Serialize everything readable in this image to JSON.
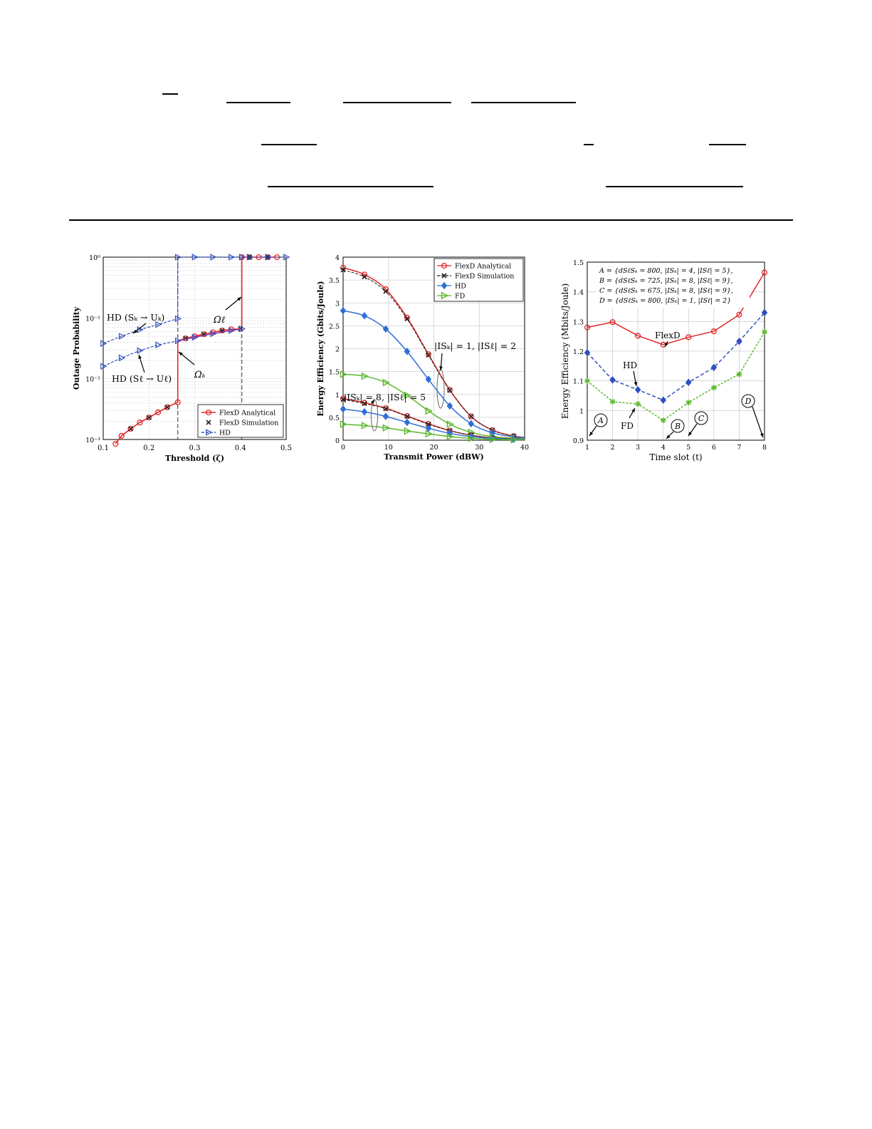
{
  "colors": {
    "flexd": "#e02626",
    "flexd_sim": "#222222",
    "hd": "#2f4fbf",
    "hd2": "#2f6fd6",
    "fd": "#5cb82c",
    "grid": "#cfcfcf",
    "purple": "#7a3fb0"
  },
  "chart_data": [
    {
      "type": "line",
      "xlabel": "Threshold (ζ)",
      "ylabel": "Outage Probability",
      "yscale": "log",
      "xlim": [
        0.1,
        0.5
      ],
      "ylim": [
        0.001,
        1
      ],
      "xticks": [
        "0.1",
        "0.2",
        "0.3",
        "0.4",
        "0.5"
      ],
      "yticks": [
        "10⁻³",
        "10⁻²",
        "10⁻¹",
        "10⁰"
      ],
      "legend": {
        "position": "bottom-right",
        "entries": [
          "FlexD Analytical",
          "FlexD Simulation",
          "HD"
        ]
      },
      "grid": true,
      "annotations": [
        "HD (Sₖ → Uₖ)",
        "HD (Sℓ → Uℓ)",
        "Ωℓ",
        "Ωₖ"
      ],
      "series": [
        {
          "name": "FlexD Analytical",
          "color": "#e02626",
          "marker": "circle",
          "x": [
            0.127,
            0.14,
            0.16,
            0.18,
            0.2,
            0.22,
            0.24,
            0.263,
            0.263,
            0.28,
            0.3,
            0.32,
            0.34,
            0.36,
            0.38,
            0.403,
            0.403,
            0.42,
            0.44,
            0.46,
            0.48
          ],
          "y": [
            0.00085,
            0.00115,
            0.0015,
            0.0019,
            0.0023,
            0.0028,
            0.0034,
            0.0041,
            0.042,
            0.046,
            0.05,
            0.054,
            0.058,
            0.062,
            0.065,
            0.066,
            1,
            1,
            1,
            1,
            1
          ]
        },
        {
          "name": "FlexD Simulation",
          "color": "#222222",
          "marker": "x",
          "x": [
            0.16,
            0.2,
            0.24,
            0.28,
            0.32,
            0.36,
            0.4,
            0.42,
            0.46
          ],
          "y": [
            0.0015,
            0.0023,
            0.0034,
            0.046,
            0.054,
            0.062,
            0.066,
            1,
            1
          ]
        },
        {
          "name": "HD",
          "color": "#2f4fbf",
          "marker": "triangle",
          "x": [
            0.1,
            0.14,
            0.18,
            0.22,
            0.263,
            0.263,
            0.3,
            0.34,
            0.38,
            0.403,
            0.42,
            0.46,
            0.5
          ],
          "y": [
            0.038,
            0.05,
            0.064,
            0.078,
            0.097,
            1,
            1,
            1,
            1,
            1,
            1,
            1,
            1
          ]
        },
        {
          "name": "",
          "color": "#2f4fbf",
          "marker": "triangle",
          "x": [
            0.1,
            0.14,
            0.18,
            0.22,
            0.263,
            0.3,
            0.34,
            0.38,
            0.403
          ],
          "y": [
            0.016,
            0.022,
            0.029,
            0.036,
            0.042,
            0.048,
            0.055,
            0.062,
            0.066
          ]
        }
      ]
    },
    {
      "type": "line",
      "xlabel": "Transmit Power (dBW)",
      "ylabel": "Energy Efficiency (Gbits/Joule)",
      "xlim": [
        0,
        40
      ],
      "ylim": [
        0,
        4
      ],
      "xticks": [
        "0",
        "10",
        "20",
        "30",
        "40"
      ],
      "yticks": [
        "0",
        "0.5",
        "1",
        "1.5",
        "2",
        "2.5",
        "3",
        "3.5",
        "4"
      ],
      "legend": {
        "position": "top-right",
        "entries": [
          "FlexD Analytical",
          "FlexD Simulation",
          "HD",
          "FD"
        ]
      },
      "grid": true,
      "annotations": [
        "|ISₖ| = 1, |ISℓ| = 2",
        "|ISₖ| = 8, |ISℓ| = 5"
      ],
      "x": [
        0,
        4.7,
        9.4,
        14.1,
        18.8,
        23.5,
        28.2,
        32.9,
        37.6,
        40
      ],
      "series": [
        {
          "name": "FlexD Analytical",
          "color": "#e02626",
          "values": [
            3.77,
            3.62,
            3.3,
            2.68,
            1.88,
            1.1,
            0.52,
            0.22,
            0.09,
            0.06
          ]
        },
        {
          "name": "FlexD Simulation",
          "color": "#222222",
          "values": [
            3.72,
            3.57,
            3.25,
            2.65,
            1.86,
            1.09,
            0.52,
            0.22,
            0.09,
            0.06
          ]
        },
        {
          "name": "HD",
          "color": "#2f6fd6",
          "values": [
            2.83,
            2.72,
            2.43,
            1.94,
            1.33,
            0.75,
            0.36,
            0.16,
            0.07,
            0.05
          ]
        },
        {
          "name": "FD",
          "color": "#5cb82c",
          "values": [
            1.44,
            1.4,
            1.26,
            0.98,
            0.64,
            0.35,
            0.17,
            0.08,
            0.04,
            0.03
          ]
        },
        {
          "name": "",
          "color": "#e02626",
          "values": [
            0.91,
            0.82,
            0.7,
            0.53,
            0.36,
            0.21,
            0.11,
            0.05,
            0.03,
            0.02
          ]
        },
        {
          "name": "",
          "color": "#222222",
          "values": [
            0.89,
            0.8,
            0.69,
            0.52,
            0.35,
            0.21,
            0.11,
            0.05,
            0.03,
            0.02
          ]
        },
        {
          "name": "",
          "color": "#2f6fd6",
          "values": [
            0.68,
            0.62,
            0.52,
            0.39,
            0.26,
            0.15,
            0.08,
            0.04,
            0.02,
            0.02
          ]
        },
        {
          "name": "",
          "color": "#5cb82c",
          "values": [
            0.35,
            0.32,
            0.27,
            0.2,
            0.14,
            0.08,
            0.04,
            0.02,
            0.01,
            0.01
          ]
        }
      ]
    },
    {
      "type": "line",
      "xlabel": "Time slot (t)",
      "ylabel": "Energy Efficiency (Mbits/Joule)",
      "xlim": [
        1,
        8
      ],
      "ylim": [
        0.9,
        1.5
      ],
      "xticks": [
        "1",
        "2",
        "3",
        "4",
        "5",
        "6",
        "7",
        "8"
      ],
      "yticks": [
        "0.9",
        "1",
        "1.1",
        "1.2",
        "1.3",
        "1.4",
        "1.5"
      ],
      "grid": true,
      "x": [
        1,
        2,
        3,
        4,
        5,
        6,
        7,
        8
      ],
      "legend_lines": [
        "A = {dSℓSₖ = 800, |ISₖ| = 4, |ISℓ| = 5},",
        "B = {dSℓSₖ = 725, |ISₖ| = 8, |ISℓ| = 9},",
        "C = {dSℓSₖ = 675, |ISₖ| = 8, |ISℓ| = 9},",
        "D = {dSℓSₖ = 800, |ISₖ| = 1, |ISℓ| = 2}"
      ],
      "annotations": [
        "FlexD",
        "HD",
        "FD",
        "A",
        "B",
        "C",
        "D"
      ],
      "series": [
        {
          "name": "FlexD",
          "color": "#e02626",
          "values": [
            1.28,
            1.298,
            1.252,
            1.222,
            1.247,
            1.267,
            1.323,
            1.465
          ]
        },
        {
          "name": "HD",
          "color": "#2f4fbf",
          "values": [
            1.195,
            1.103,
            1.07,
            1.035,
            1.095,
            1.145,
            1.233,
            1.33
          ]
        },
        {
          "name": "FD",
          "color": "#5cb82c",
          "values": [
            1.1,
            1.03,
            1.022,
            0.967,
            1.027,
            1.077,
            1.122,
            1.265
          ]
        }
      ]
    }
  ]
}
